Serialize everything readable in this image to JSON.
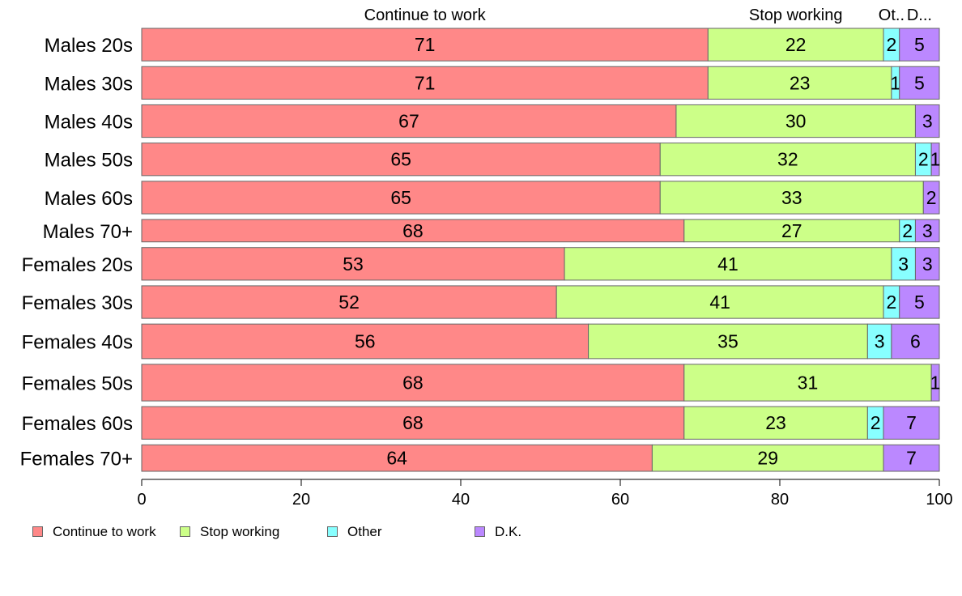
{
  "chart_data": {
    "type": "bar",
    "orientation": "horizontal",
    "stacked": true,
    "title": "",
    "xlabel": "",
    "ylabel": "",
    "xlim": [
      0,
      100
    ],
    "x_ticks": [
      "0",
      "20",
      "40",
      "60",
      "80",
      "100"
    ],
    "categories": [
      "Males 20s",
      "Males 30s",
      "Males 40s",
      "Males 50s",
      "Males 60s",
      "Males 70+",
      "Females 20s",
      "Females 30s",
      "Females 40s",
      "Females 50s",
      "Females 60s",
      "Females 70+"
    ],
    "category_weights": [
      0.8,
      0.8,
      0.8,
      0.8,
      0.8,
      0.55,
      0.8,
      0.8,
      0.85,
      0.9,
      0.8,
      0.65
    ],
    "series": [
      {
        "name": "Continue to work",
        "color": "#ff8888",
        "values": [
          71,
          71,
          67,
          65,
          65,
          68,
          53,
          52,
          56,
          68,
          68,
          64
        ]
      },
      {
        "name": "Stop working",
        "color": "#ccff88",
        "values": [
          22,
          23,
          30,
          32,
          33,
          27,
          41,
          41,
          35,
          31,
          23,
          29
        ]
      },
      {
        "name": "Other",
        "color": "#88ffff",
        "values": [
          2,
          1,
          0,
          2,
          0,
          2,
          3,
          2,
          3,
          0,
          2,
          0
        ]
      },
      {
        "name": "D.K.",
        "color": "#bb88ff",
        "values": [
          5,
          5,
          3,
          1,
          2,
          3,
          3,
          5,
          6,
          1,
          7,
          7
        ]
      }
    ],
    "top_labels": [
      "Continue to work",
      "Stop working",
      "Ot..",
      "D..."
    ],
    "legend_position": "bottom-left",
    "grid": false
  }
}
